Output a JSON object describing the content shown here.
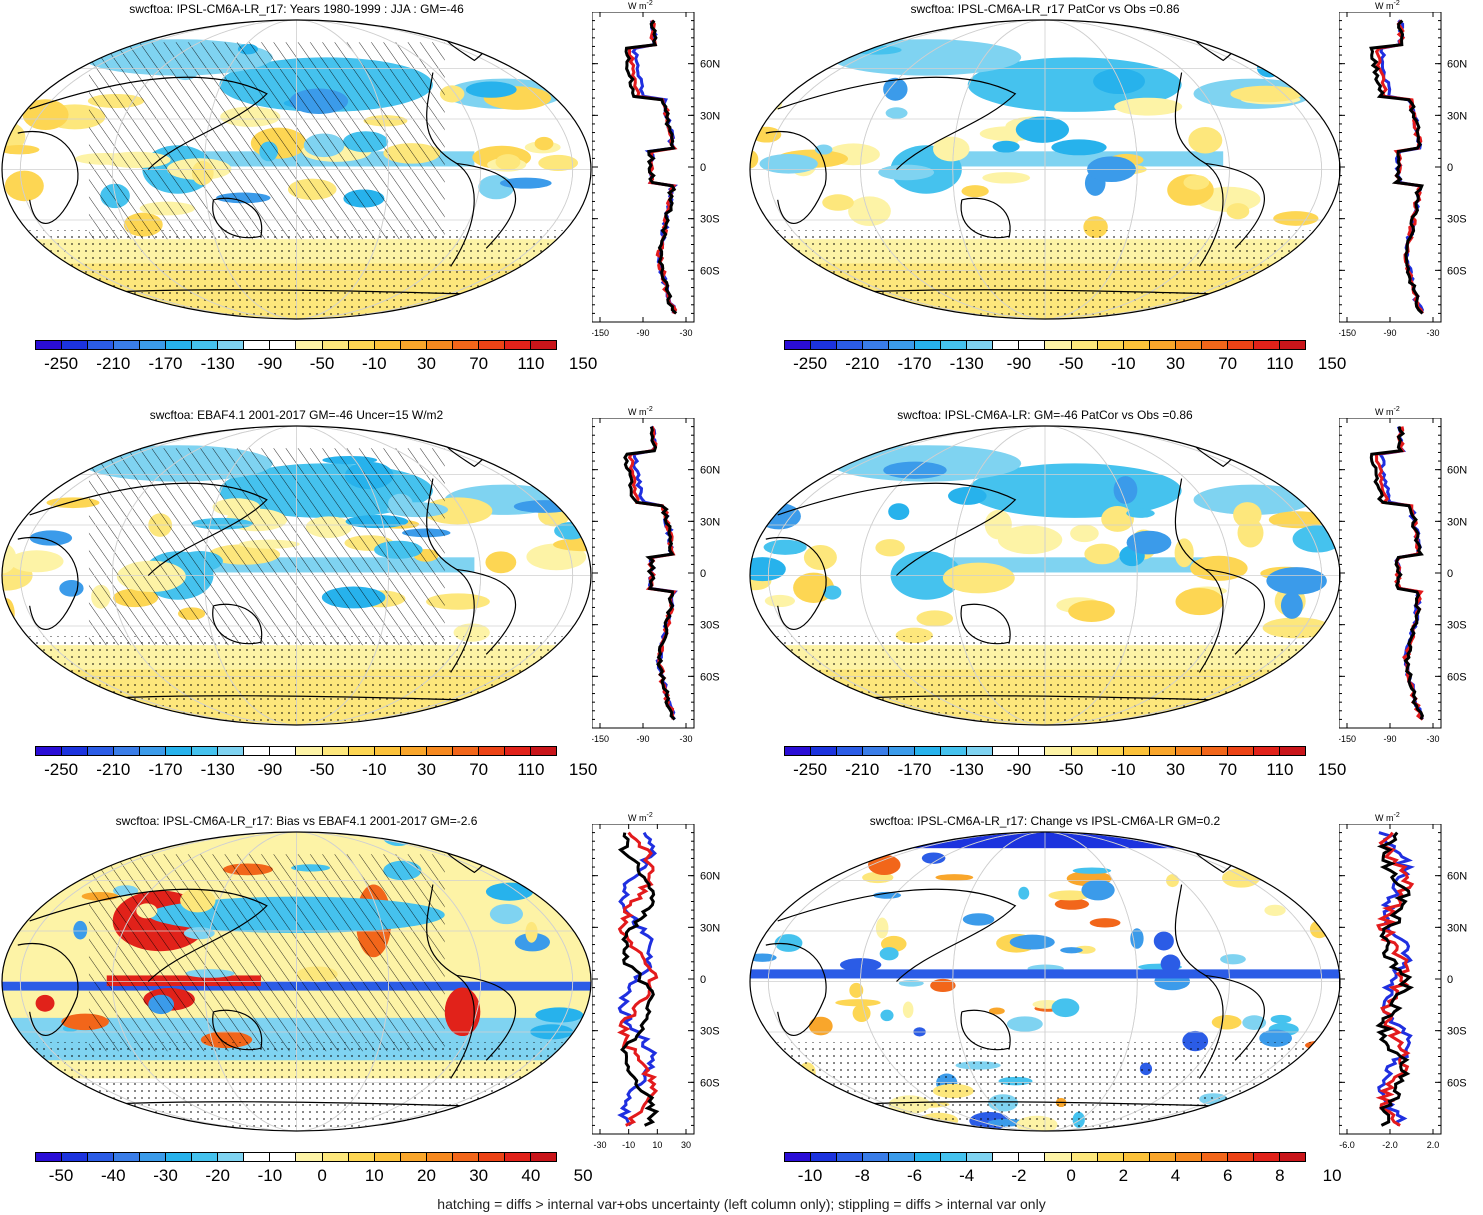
{
  "panels": [
    {
      "id": "p1",
      "title": "swcftoa: IPSL-CM6A-LR_r17: Years 1980-1999 : JJA : GM=-46",
      "map_fill": "clim",
      "hatched": true,
      "colorbar_labels": [
        "-250",
        "-210",
        "-170",
        "-130",
        "-90",
        "-50",
        "-10",
        "30",
        "70",
        "110",
        "150"
      ],
      "profile_x_ticks": [
        "-150",
        "-90",
        "-30"
      ],
      "profile_y_ticks": [
        "60N",
        "30N",
        "0",
        "30S",
        "60S"
      ]
    },
    {
      "id": "p2",
      "title": "swcftoa: IPSL-CM6A-LR_r17 PatCor vs Obs =0.86",
      "map_fill": "clim",
      "hatched": false,
      "colorbar_labels": [
        "-250",
        "-210",
        "-170",
        "-130",
        "-90",
        "-50",
        "-10",
        "30",
        "70",
        "110",
        "150"
      ],
      "profile_x_ticks": [
        "-150",
        "-90",
        "-30"
      ],
      "profile_y_ticks": [
        "60N",
        "30N",
        "0",
        "30S",
        "60S"
      ]
    },
    {
      "id": "p3",
      "title": "swcftoa: EBAF4.1 2001-2017 GM=-46 Uncer=15 W/m2",
      "map_fill": "clim",
      "hatched": true,
      "colorbar_labels": [
        "-250",
        "-210",
        "-170",
        "-130",
        "-90",
        "-50",
        "-10",
        "30",
        "70",
        "110",
        "150"
      ],
      "profile_x_ticks": [
        "-150",
        "-90",
        "-30"
      ],
      "profile_y_ticks": [
        "60N",
        "30N",
        "0",
        "30S",
        "60S"
      ]
    },
    {
      "id": "p4",
      "title": "swcftoa: IPSL-CM6A-LR: GM=-46 PatCor vs Obs =0.86",
      "map_fill": "clim",
      "hatched": false,
      "colorbar_labels": [
        "-250",
        "-210",
        "-170",
        "-130",
        "-90",
        "-50",
        "-10",
        "30",
        "70",
        "110",
        "150"
      ],
      "profile_x_ticks": [
        "-150",
        "-90",
        "-30"
      ],
      "profile_y_ticks": [
        "60N",
        "30N",
        "0",
        "30S",
        "60S"
      ]
    },
    {
      "id": "p5",
      "title": "swcftoa: IPSL-CM6A-LR_r17: Bias vs EBAF4.1 2001-2017 GM=-2.6",
      "map_fill": "bias",
      "hatched": true,
      "colorbar_labels": [
        "-50",
        "-40",
        "-30",
        "-20",
        "-10",
        "0",
        "10",
        "20",
        "30",
        "40",
        "50"
      ],
      "profile_x_ticks": [
        "-30",
        "-10",
        "10",
        "30"
      ],
      "profile_y_ticks": [
        "60N",
        "30N",
        "0",
        "30S",
        "60S"
      ]
    },
    {
      "id": "p6",
      "title": "swcftoa: IPSL-CM6A-LR_r17: Change vs IPSL-CM6A-LR GM=0.2",
      "map_fill": "change",
      "hatched": false,
      "colorbar_labels": [
        "-10",
        "-8",
        "-6",
        "-4",
        "-2",
        "0",
        "2",
        "4",
        "6",
        "8",
        "10"
      ],
      "profile_x_ticks": [
        "-6.0",
        "-2.0",
        "2.0"
      ],
      "profile_y_ticks": [
        "60N",
        "30N",
        "0",
        "30S",
        "60S"
      ]
    }
  ],
  "profile_unit": "W m-2",
  "colorbar_colors": [
    "#2a0dd6",
    "#1c33de",
    "#2b5ce6",
    "#3a7de8",
    "#3b9bea",
    "#27b2ec",
    "#45c2ee",
    "#7fd3f1",
    "#ffffff",
    "#ffffff",
    "#fdf3a6",
    "#fde77c",
    "#fdd653",
    "#fcc23a",
    "#f9a62b",
    "#f6891f",
    "#f2661a",
    "#ec4316",
    "#e1221a",
    "#c9151a"
  ],
  "line_colors": {
    "model": "#000000",
    "obs": "#e31a1c",
    "alt": "#1f2fe0"
  },
  "footer": "hatching = diffs > internal var+obs uncertainty (left column only); stippling = diffs > internal var only"
}
